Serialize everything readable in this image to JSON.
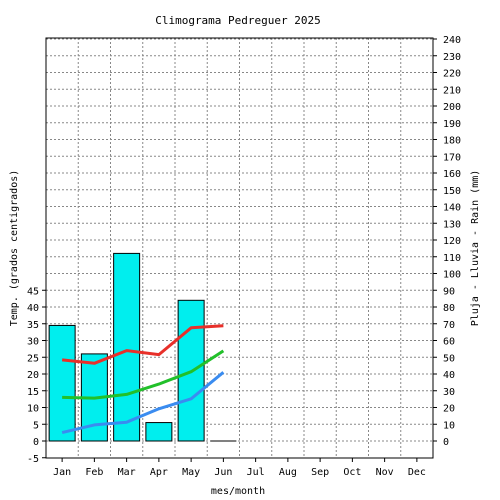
{
  "chart_data": {
    "type": "bar",
    "title": "Climograma Pedreguer 2025",
    "xlabel": "mes/month",
    "ylabel_left": "Temp. (grados centigrados)",
    "ylabel_right": "Pluja - Lluvia - Rain (mm)",
    "categories": [
      "Jan",
      "Feb",
      "Mar",
      "Apr",
      "May",
      "Jun",
      "Jul",
      "Aug",
      "Sep",
      "Oct",
      "Nov",
      "Dec"
    ],
    "left_axis": {
      "ticks": [
        -5,
        0,
        5,
        10,
        15,
        20,
        25,
        30,
        35,
        40,
        45
      ]
    },
    "right_axis": {
      "ylim": [
        0,
        240
      ],
      "step": 10
    },
    "grid": true,
    "bar_series": {
      "values": [
        69,
        52,
        112,
        11,
        84,
        0
      ]
    },
    "line_series": [
      {
        "color": "#e8302a",
        "values": [
          24.2,
          23.2,
          27.0,
          25.8,
          33.8,
          34.4
        ]
      },
      {
        "color": "#22c02a",
        "values": [
          13.0,
          12.8,
          13.9,
          17.0,
          20.7,
          26.9
        ]
      },
      {
        "color": "#3a8cf0",
        "values": [
          2.5,
          4.8,
          5.6,
          9.6,
          12.6,
          20.5
        ]
      }
    ],
    "colors": {
      "bars": "#00eeee",
      "bar_stroke": "#000000",
      "grid": "#888888"
    }
  }
}
